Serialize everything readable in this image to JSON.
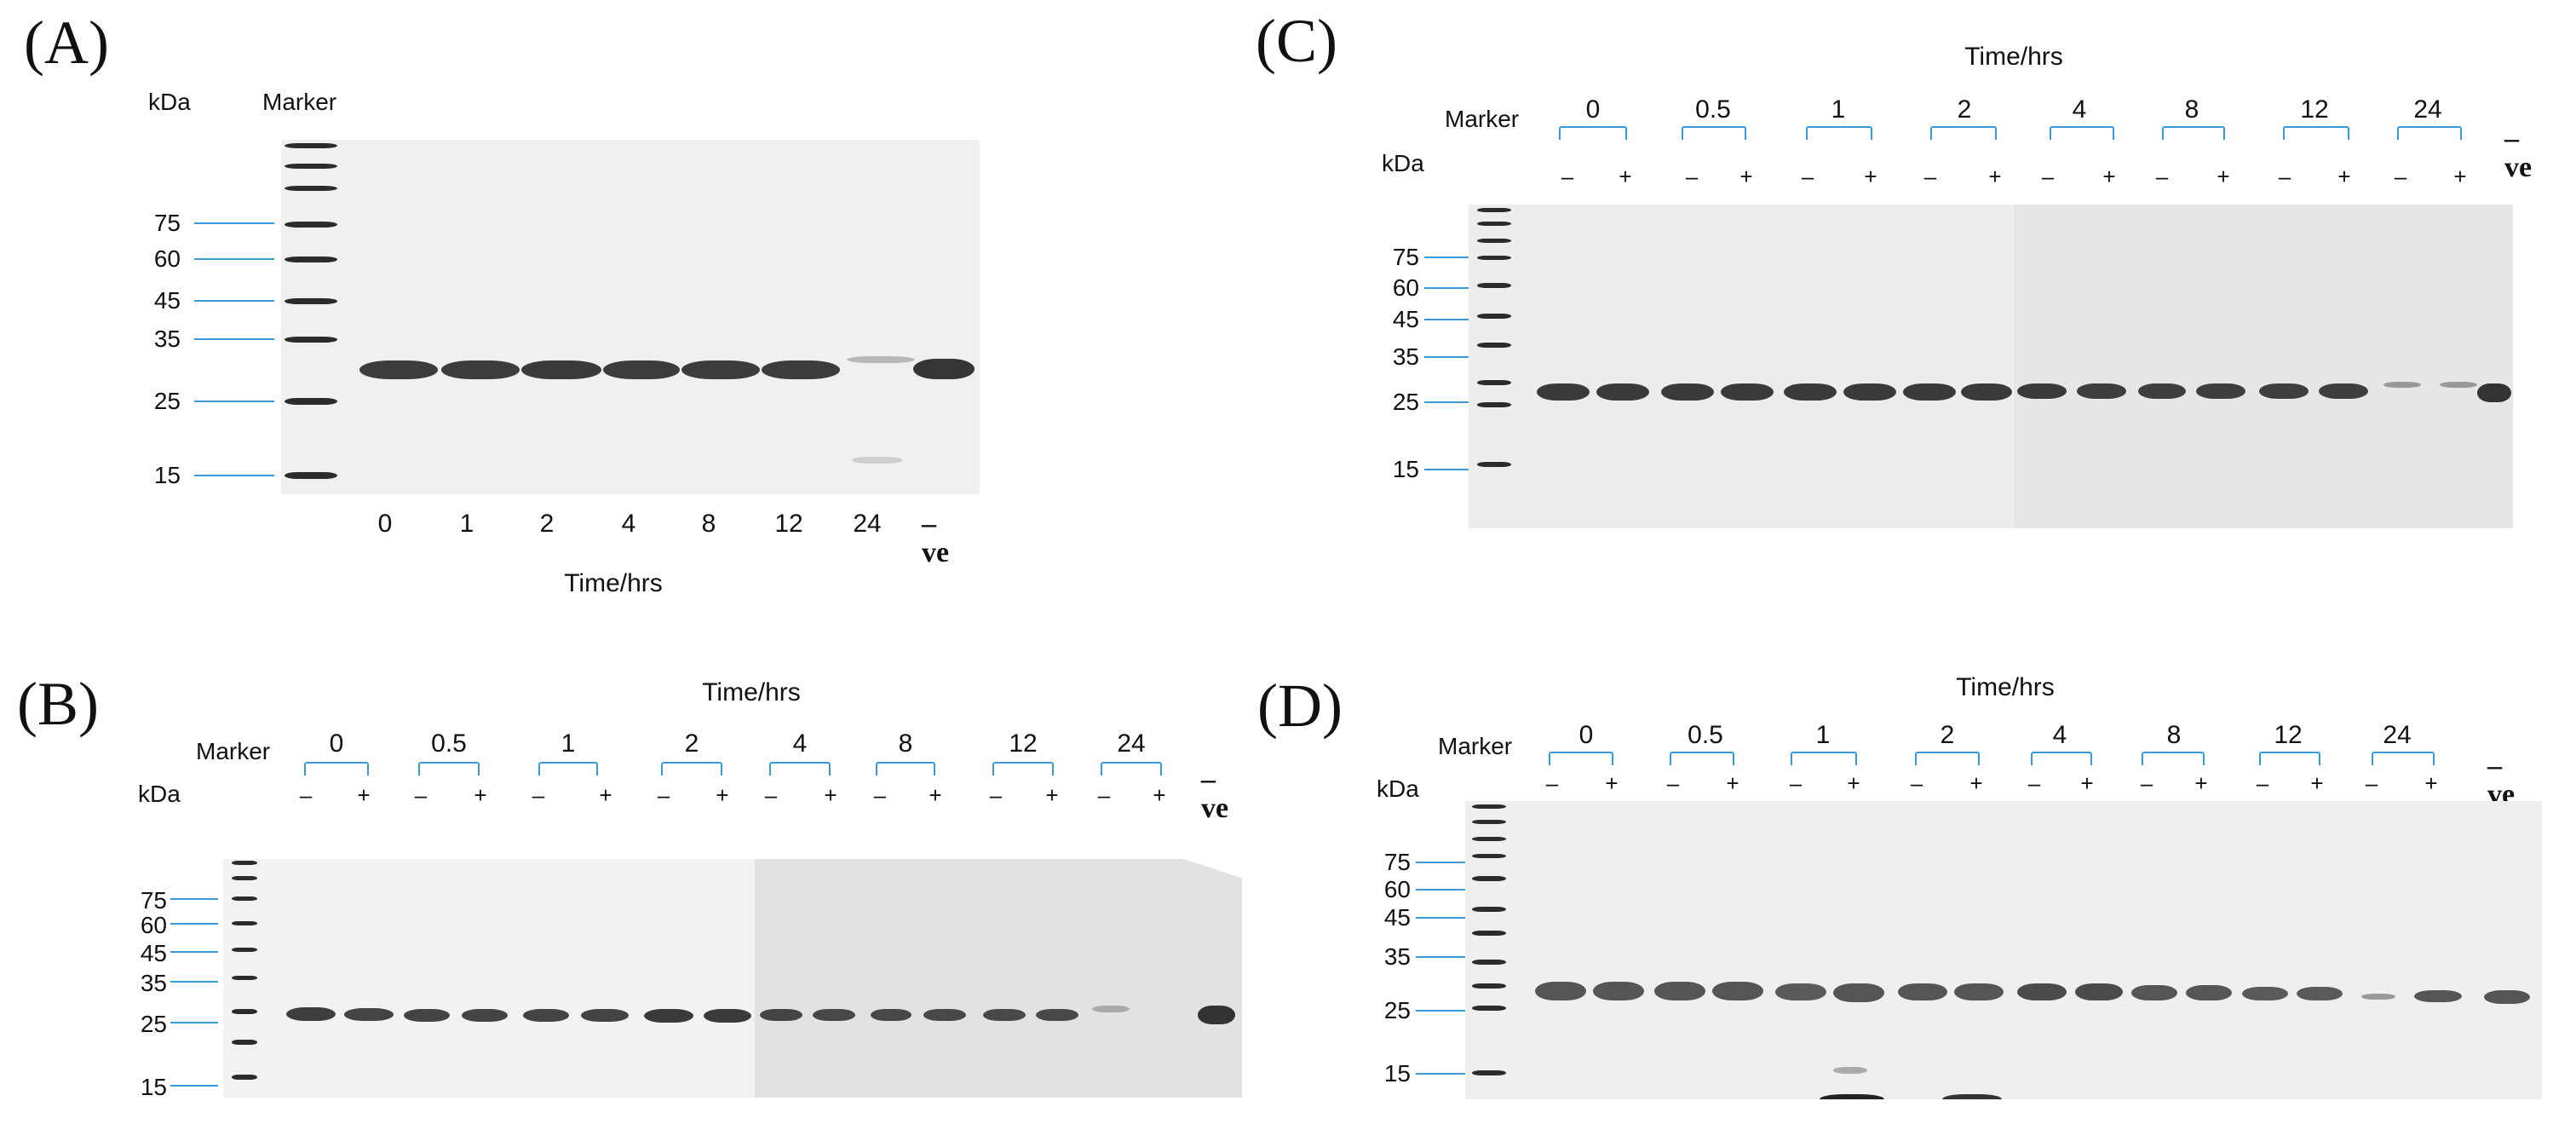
{
  "panels": {
    "A": {
      "label": "(A)",
      "kda_label": "kDa",
      "marker_label": "Marker",
      "mw": [
        "75",
        "60",
        "45",
        "35",
        "25",
        "15"
      ],
      "lanes": [
        "0",
        "1",
        "2",
        "4",
        "8",
        "12",
        "24",
        "–ve"
      ],
      "x_title": "Time/hrs"
    },
    "B": {
      "label": "(B)",
      "title": "Time/hrs",
      "marker_label": "Marker",
      "kda_label": "kDa",
      "times": [
        "0",
        "0.5",
        "1",
        "2",
        "4",
        "8",
        "12",
        "24"
      ],
      "minus": "–",
      "plus": "+",
      "neg": "–ve",
      "mw": [
        "75",
        "60",
        "45",
        "35",
        "25",
        "15"
      ]
    },
    "C": {
      "label": "(C)",
      "title": "Time/hrs",
      "marker_label": "Marker",
      "kda_label": "kDa",
      "times": [
        "0",
        "0.5",
        "1",
        "2",
        "4",
        "8",
        "12",
        "24"
      ],
      "minus": "–",
      "plus": "+",
      "neg": "–ve",
      "mw": [
        "75",
        "60",
        "45",
        "35",
        "25",
        "15"
      ]
    },
    "D": {
      "label": "(D)",
      "title": "Time/hrs",
      "marker_label": "Marker",
      "kda_label": "kDa",
      "times": [
        "0",
        "0.5",
        "1",
        "2",
        "4",
        "8",
        "12",
        "24"
      ],
      "minus": "–",
      "plus": "+",
      "neg": "–ve",
      "mw": [
        "75",
        "60",
        "45",
        "35",
        "25",
        "15"
      ]
    }
  },
  "colors": {
    "bracket": "#3a9ad9",
    "gel_background": "#efefef",
    "band": "#3a3a3a"
  }
}
